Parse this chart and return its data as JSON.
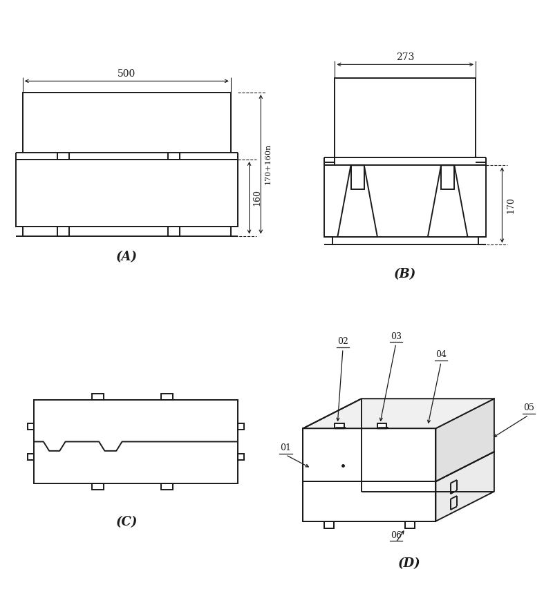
{
  "bg_color": "#ffffff",
  "lc": "#1a1a1a",
  "lw": 1.4,
  "lw_thin": 0.8,
  "label_A": "(A)",
  "label_B": "(B)",
  "label_C": "(C)",
  "label_D": "(D)",
  "dim_500": "500",
  "dim_273": "273",
  "dim_160": "160",
  "dim_170_160": "170+160n",
  "dim_170": "170",
  "parts": [
    "01",
    "02",
    "03",
    "04",
    "05",
    "06"
  ]
}
